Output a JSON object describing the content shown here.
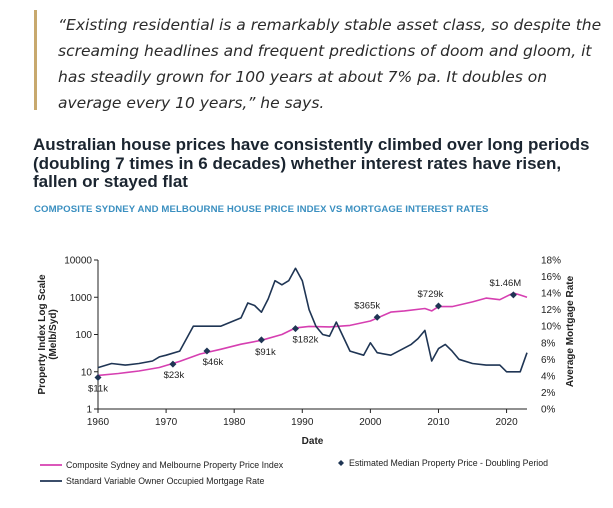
{
  "quote": "“Existing residential is a remarkably stable asset class, so despite the screaming headlines and frequent predictions of doom and gloom, it has steadily grown for 100 years at about 7% pa. It doubles on average every 10 years,” he says.",
  "title": "Australian house prices have consistently climbed over long periods (doubling 7 times in 6 decades) whether interest rates have risen, fallen or stayed flat",
  "colors": {
    "accent_bar": "#c8a96e",
    "subtitle": "#3a8fc0",
    "price_series": "#d63fb1",
    "rate_series": "#1f3554",
    "marker": "#1f3554"
  },
  "chart_data": {
    "type": "line",
    "subtitle": "COMPOSITE SYDNEY AND MELBOURNE HOUSE PRICE INDEX VS MORTGAGE INTEREST RATES",
    "xlabel": "Date",
    "ylabel_left": "Property Index Log Scale (Melb/Syd)",
    "ylabel_right": "Average Mortgage Rate",
    "xlim": [
      1960,
      2023
    ],
    "x_ticks": [
      1960,
      1970,
      1980,
      1990,
      2000,
      2010,
      2020
    ],
    "y_left_scale": "log",
    "y_left_ticks": [
      1,
      10,
      100,
      1000,
      10000
    ],
    "y_right_ticks": [
      "0%",
      "2%",
      "4%",
      "6%",
      "8%",
      "10%",
      "12%",
      "14%",
      "16%",
      "18%"
    ],
    "y_right_lim": [
      0,
      18
    ],
    "grid": false,
    "legend_position": "bottom",
    "series": [
      {
        "name": "Composite Sydney and Melbourne Property Price Index",
        "axis": "left",
        "x": [
          1960,
          1963,
          1966,
          1969,
          1972,
          1975,
          1978,
          1981,
          1984,
          1987,
          1989,
          1991,
          1994,
          1997,
          2000,
          2003,
          2005,
          2008,
          2009,
          2010,
          2012,
          2015,
          2017,
          2019,
          2021,
          2022,
          2023
        ],
        "y": [
          8,
          9,
          10.5,
          13,
          19,
          30,
          40,
          55,
          70,
          100,
          150,
          165,
          160,
          175,
          230,
          400,
          430,
          500,
          430,
          560,
          560,
          750,
          950,
          860,
          1300,
          1150,
          1000
        ]
      },
      {
        "name": "Standard Variable Owner Occupied Mortgage Rate",
        "axis": "right",
        "x": [
          1960,
          1962,
          1964,
          1966,
          1968,
          1969,
          1970,
          1972,
          1974,
          1975,
          1978,
          1981,
          1982,
          1983,
          1984,
          1985,
          1986,
          1987,
          1988,
          1989,
          1990,
          1991,
          1992,
          1993,
          1994,
          1995,
          1997,
          1999,
          2000,
          2001,
          2003,
          2006,
          2007,
          2008,
          2009,
          2010,
          2011,
          2012,
          2013,
          2015,
          2017,
          2019,
          2020,
          2021,
          2022,
          2023
        ],
        "y": [
          5,
          5.5,
          5.3,
          5.5,
          5.8,
          6.3,
          6.5,
          7,
          10,
          10,
          10,
          11,
          12.8,
          12.5,
          11.7,
          13.3,
          15.5,
          15,
          15.5,
          17,
          15.5,
          12,
          10,
          9,
          8.8,
          10.5,
          7,
          6.5,
          8,
          6.8,
          6.5,
          7.8,
          8.5,
          9.5,
          5.8,
          7.3,
          7.8,
          7,
          6,
          5.5,
          5.3,
          5.3,
          4.5,
          4.5,
          4.5,
          6.8
        ]
      }
    ],
    "doubling_markers": {
      "name": "Estimated Median Property Price - Doubling Period",
      "points": [
        {
          "x": 1960,
          "y": 7,
          "label": "$11k"
        },
        {
          "x": 1971,
          "y": 16,
          "label": "$23k"
        },
        {
          "x": 1976,
          "y": 36,
          "label": "$46k"
        },
        {
          "x": 1984,
          "y": 72,
          "label": "$91k"
        },
        {
          "x": 1989,
          "y": 144,
          "label": "$182k"
        },
        {
          "x": 2001,
          "y": 290,
          "label": "$365k"
        },
        {
          "x": 2010,
          "y": 580,
          "label": "$729k"
        },
        {
          "x": 2021,
          "y": 1160,
          "label": "$1.46M"
        }
      ]
    }
  }
}
